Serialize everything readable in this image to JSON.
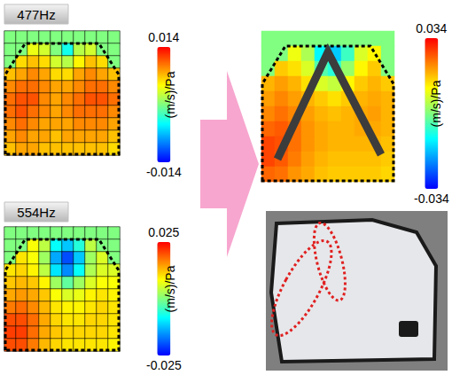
{
  "chart_data": [
    {
      "type": "heatmap",
      "title": "477Hz",
      "grid": true,
      "tick_labels": false,
      "colorbar_range": [
        -0.014,
        0.014
      ],
      "colorbar_ticks": [
        -0.014,
        0.014
      ],
      "colorbar_label": "(m/s)/Pa",
      "cells": [
        [
          0,
          0,
          0,
          0,
          0,
          0,
          0,
          0,
          0,
          0
        ],
        [
          0,
          0,
          0.004,
          0.003,
          0.0,
          -0.004,
          0.002,
          0.003,
          0,
          0
        ],
        [
          0,
          0.006,
          0.007,
          0.006,
          0.003,
          0.002,
          0.005,
          0.007,
          0.006,
          0
        ],
        [
          0.007,
          0.008,
          0.009,
          0.008,
          0.006,
          0.006,
          0.008,
          0.009,
          0.008,
          0.007
        ],
        [
          0.009,
          0.01,
          0.01,
          0.009,
          0.008,
          0.008,
          0.009,
          0.01,
          0.01,
          0.009
        ],
        [
          0.01,
          0.011,
          0.011,
          0.009,
          0.008,
          0.009,
          0.01,
          0.011,
          0.011,
          0.01
        ],
        [
          0.01,
          0.011,
          0.01,
          0.009,
          0.008,
          0.009,
          0.01,
          0.01,
          0.01,
          0.009
        ],
        [
          0.009,
          0.01,
          0.009,
          0.008,
          0.008,
          0.008,
          0.009,
          0.009,
          0.009,
          0.008
        ],
        [
          0.008,
          0.009,
          0.008,
          0.008,
          0.007,
          0.008,
          0.008,
          0.008,
          0.008,
          0.007
        ],
        [
          0.007,
          0.008,
          0.008,
          0.007,
          0.007,
          0.007,
          0.007,
          0.007,
          0.007,
          0.006
        ]
      ]
    },
    {
      "type": "heatmap",
      "title": "554Hz",
      "grid": true,
      "tick_labels": false,
      "colorbar_range": [
        -0.025,
        0.025
      ],
      "colorbar_ticks": [
        -0.025,
        0.025
      ],
      "colorbar_label": "(m/s)/Pa",
      "cells": [
        [
          0,
          0,
          0,
          0,
          0,
          0,
          0,
          0,
          0,
          0
        ],
        [
          0,
          0,
          0.008,
          0.004,
          -0.008,
          -0.012,
          -0.006,
          0.004,
          0,
          0
        ],
        [
          0,
          0.01,
          0.008,
          0.002,
          -0.014,
          -0.02,
          -0.012,
          0.002,
          0.006,
          0
        ],
        [
          0.01,
          0.011,
          0.009,
          0.004,
          -0.01,
          -0.016,
          -0.008,
          0.003,
          0.006,
          0.006
        ],
        [
          0.012,
          0.013,
          0.012,
          0.009,
          0.002,
          -0.002,
          0.002,
          0.006,
          0.008,
          0.008
        ],
        [
          0.014,
          0.015,
          0.014,
          0.012,
          0.008,
          0.006,
          0.007,
          0.009,
          0.01,
          0.009
        ],
        [
          0.017,
          0.018,
          0.016,
          0.013,
          0.01,
          0.009,
          0.009,
          0.01,
          0.011,
          0.01
        ],
        [
          0.02,
          0.02,
          0.018,
          0.014,
          0.011,
          0.01,
          0.01,
          0.011,
          0.011,
          0.01
        ],
        [
          0.021,
          0.021,
          0.018,
          0.014,
          0.012,
          0.011,
          0.011,
          0.011,
          0.011,
          0.01
        ],
        [
          0.02,
          0.02,
          0.017,
          0.013,
          0.011,
          0.01,
          0.01,
          0.01,
          0.01,
          0.009
        ]
      ]
    },
    {
      "type": "heatmap",
      "grid": false,
      "tick_labels": false,
      "colorbar_range": [
        -0.034,
        0.034
      ],
      "colorbar_ticks": [
        -0.034,
        0.034
      ],
      "colorbar_label": "(m/s)/Pa",
      "cells": [
        [
          0,
          0,
          0,
          0,
          0,
          0,
          0,
          0,
          0,
          0
        ],
        [
          0,
          0,
          0.01,
          0.004,
          -0.012,
          -0.016,
          -0.006,
          0.008,
          0.012,
          0
        ],
        [
          0,
          0.016,
          0.014,
          0.008,
          -0.004,
          -0.008,
          0.002,
          0.012,
          0.016,
          0
        ],
        [
          0.018,
          0.02,
          0.018,
          0.014,
          0.008,
          0.006,
          0.012,
          0.016,
          0.018,
          0.016
        ],
        [
          0.02,
          0.022,
          0.02,
          0.018,
          0.016,
          0.014,
          0.016,
          0.018,
          0.019,
          0.018
        ],
        [
          0.022,
          0.024,
          0.022,
          0.02,
          0.018,
          0.017,
          0.018,
          0.019,
          0.02,
          0.018
        ],
        [
          0.025,
          0.026,
          0.024,
          0.021,
          0.019,
          0.018,
          0.018,
          0.019,
          0.019,
          0.018
        ],
        [
          0.028,
          0.027,
          0.024,
          0.021,
          0.019,
          0.018,
          0.018,
          0.018,
          0.018,
          0.017
        ],
        [
          0.028,
          0.026,
          0.023,
          0.02,
          0.018,
          0.017,
          0.017,
          0.017,
          0.017,
          0.016
        ],
        [
          0.025,
          0.024,
          0.021,
          0.019,
          0.017,
          0.016,
          0.016,
          0.016,
          0.016,
          0.015
        ]
      ]
    }
  ]
}
